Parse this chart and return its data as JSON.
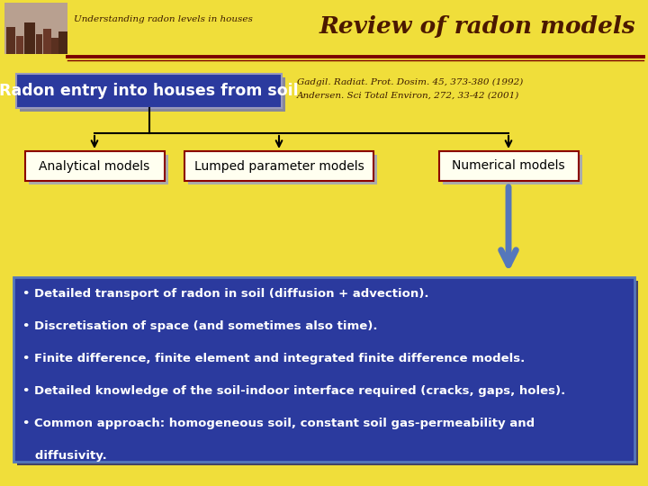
{
  "bg_color": "#F0DE3A",
  "header_subtitle": "Understanding radon levels in houses",
  "header_title": "Review of radon models",
  "divider_color": "#7B0000",
  "top_box_text": "Radon entry into houses from soil",
  "top_box_bg": "#2B3A9E",
  "top_box_text_color": "#FFFFFF",
  "ref_line1": "Gadgil. Radiat. Prot. Dosim. 45, 373-380 (1992)",
  "ref_line2": "Andersen. Sci Total Environ, 272, 33-42 (2001)",
  "sub_boxes": [
    "Analytical models",
    "Lumped parameter models",
    "Numerical models"
  ],
  "sub_box_bg": "#FFFFF0",
  "sub_box_border": "#8B0000",
  "sub_box_text_color": "#000000",
  "bullet_box_bg": "#2B3A9E",
  "bullet_box_border": "#5577BB",
  "bullets": [
    "• Detailed transport of radon in soil (diffusion + advection).",
    "• Discretisation of space (and sometimes also time).",
    "• Finite difference, finite element and integrated finite difference models.",
    "• Detailed knowledge of the soil-indoor interface required (cracks, gaps, holes).",
    "• Common approach: homogeneous soil, constant soil gas-permeability and",
    "   diffusivity."
  ],
  "bullet_text_color": "#FFFFFF",
  "arrow_color": "#5577BB",
  "line_color": "#000000"
}
